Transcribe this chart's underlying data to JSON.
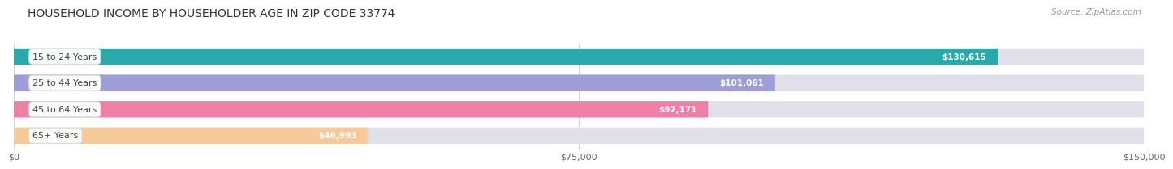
{
  "title": "HOUSEHOLD INCOME BY HOUSEHOLDER AGE IN ZIP CODE 33774",
  "source": "Source: ZipAtlas.com",
  "categories": [
    "15 to 24 Years",
    "25 to 44 Years",
    "45 to 64 Years",
    "65+ Years"
  ],
  "values": [
    130615,
    101061,
    92171,
    46993
  ],
  "bar_colors": [
    "#29aaaa",
    "#9d9dd8",
    "#f07fa8",
    "#f5c99a"
  ],
  "value_labels": [
    "$130,615",
    "$101,061",
    "$92,171",
    "$46,993"
  ],
  "xlim": [
    0,
    150000
  ],
  "xticks": [
    0,
    75000,
    150000
  ],
  "xtick_labels": [
    "$0",
    "$75,000",
    "$150,000"
  ],
  "background_color": "#ffffff",
  "bar_bg_color": "#e0e0e8",
  "title_fontsize": 10,
  "source_fontsize": 7.5,
  "bar_height": 0.62,
  "bar_gap": 0.18
}
